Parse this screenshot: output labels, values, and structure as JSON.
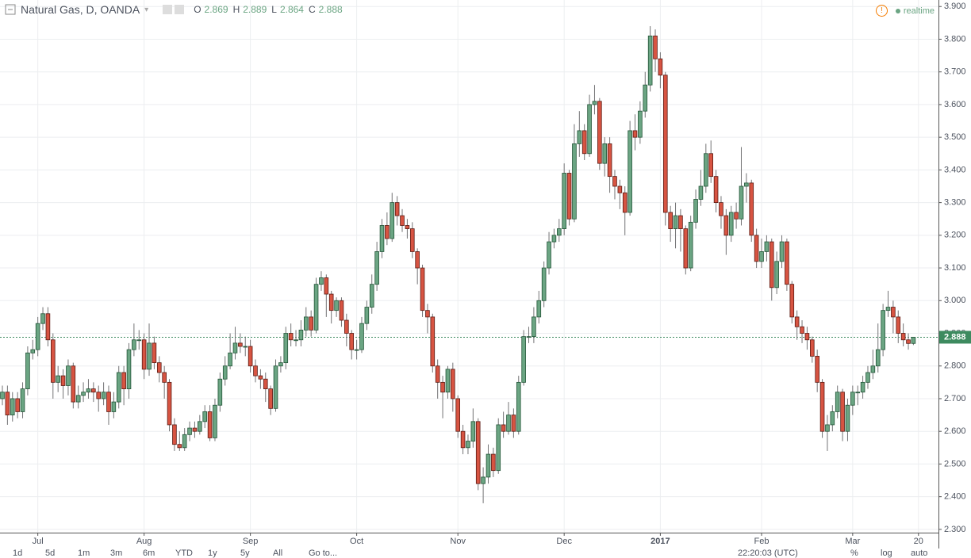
{
  "chart_data": {
    "type": "candlestick",
    "title": "Natural Gas, D, OANDA",
    "ohlc_labels": [
      "O",
      "H",
      "L",
      "C"
    ],
    "status": "realtime",
    "open": [
      2.7,
      2.72,
      2.65,
      2.7,
      2.66,
      2.73,
      2.84,
      2.85,
      2.93,
      2.96,
      2.88,
      2.75,
      2.77,
      2.74,
      2.8,
      2.69,
      2.71,
      2.72,
      2.73,
      2.72,
      2.7,
      2.72,
      2.66,
      2.69,
      2.78,
      2.73,
      2.85,
      2.88,
      2.88,
      2.79,
      2.87,
      2.81,
      2.78,
      2.75,
      2.62,
      2.56,
      2.55,
      2.59,
      2.61,
      2.6,
      2.63,
      2.66,
      2.58,
      2.68,
      2.76,
      2.8,
      2.84,
      2.87,
      2.86,
      2.86,
      2.8,
      2.77,
      2.76,
      2.73,
      2.67,
      2.8,
      2.81,
      2.9,
      2.88,
      2.88,
      2.91,
      2.95,
      2.91,
      3.05,
      3.07,
      3.02,
      2.97,
      3.0,
      2.94,
      2.9,
      2.85,
      2.85,
      2.93,
      2.98,
      3.05,
      3.15,
      3.23,
      3.19,
      3.3,
      3.26,
      3.23,
      3.22,
      3.15,
      3.1,
      2.97,
      2.95,
      2.8,
      2.75,
      2.72,
      2.79,
      2.7,
      2.6,
      2.55,
      2.57,
      2.63,
      2.44,
      2.46,
      2.53,
      2.48,
      2.62,
      2.6,
      2.65,
      2.6,
      2.75,
      2.89,
      2.89,
      2.95,
      3.0,
      3.1,
      3.18,
      3.2,
      3.22,
      3.39,
      3.25,
      3.48,
      3.52,
      3.45,
      3.6,
      3.61,
      3.42,
      3.48,
      3.38,
      3.35,
      3.33,
      3.27,
      3.52,
      3.5,
      3.58,
      3.66,
      3.81,
      3.74,
      3.69,
      3.27,
      3.22,
      3.26,
      3.22,
      3.1,
      3.24,
      3.31,
      3.35,
      3.45,
      3.38,
      3.3,
      3.26,
      3.2,
      3.27,
      3.25,
      3.35,
      3.36,
      3.2,
      3.12,
      3.15,
      3.18,
      3.04,
      3.12,
      3.18,
      3.05,
      2.95,
      2.92,
      2.9,
      2.88,
      2.83,
      2.75,
      2.6,
      2.62,
      2.66,
      2.72,
      2.6,
      2.68,
      2.72,
      2.72,
      2.75,
      2.78,
      2.8,
      2.85,
      2.97,
      2.98,
      2.95,
      2.9,
      2.88,
      2.869
    ],
    "high": [
      2.74,
      2.74,
      2.72,
      2.72,
      2.75,
      2.86,
      2.88,
      2.95,
      2.98,
      2.98,
      2.9,
      2.8,
      2.79,
      2.82,
      2.81,
      2.74,
      2.75,
      2.76,
      2.75,
      2.74,
      2.75,
      2.74,
      2.72,
      2.8,
      2.8,
      2.87,
      2.93,
      2.91,
      2.9,
      2.93,
      2.89,
      2.83,
      2.8,
      2.76,
      2.64,
      2.6,
      2.61,
      2.63,
      2.63,
      2.65,
      2.68,
      2.68,
      2.7,
      2.78,
      2.83,
      2.9,
      2.92,
      2.9,
      2.89,
      2.88,
      2.82,
      2.79,
      2.78,
      2.74,
      2.82,
      2.83,
      2.92,
      2.93,
      2.91,
      2.94,
      2.98,
      2.97,
      3.07,
      3.09,
      3.08,
      3.03,
      3.01,
      3.01,
      2.96,
      2.91,
      2.88,
      2.95,
      3.0,
      3.08,
      3.18,
      3.25,
      3.27,
      3.33,
      3.32,
      3.28,
      3.25,
      3.24,
      3.16,
      3.11,
      2.99,
      2.96,
      2.82,
      2.77,
      2.8,
      2.81,
      2.71,
      2.62,
      2.59,
      2.67,
      2.64,
      2.49,
      2.56,
      2.55,
      2.64,
      2.66,
      2.69,
      2.67,
      2.77,
      2.91,
      2.92,
      2.98,
      3.03,
      3.12,
      3.21,
      3.22,
      3.25,
      3.42,
      3.4,
      3.54,
      3.58,
      3.54,
      3.63,
      3.66,
      3.62,
      3.5,
      3.5,
      3.4,
      3.37,
      3.35,
      3.55,
      3.57,
      3.61,
      3.7,
      3.84,
      3.83,
      3.76,
      3.7,
      3.29,
      3.3,
      3.28,
      3.23,
      3.26,
      3.34,
      3.4,
      3.48,
      3.49,
      3.4,
      3.32,
      3.28,
      3.29,
      3.3,
      3.47,
      3.39,
      3.37,
      3.22,
      3.19,
      3.2,
      3.19,
      3.15,
      3.2,
      3.19,
      3.06,
      2.97,
      2.94,
      2.92,
      2.89,
      2.85,
      2.76,
      2.65,
      2.68,
      2.74,
      2.73,
      2.7,
      2.74,
      2.74,
      2.77,
      2.8,
      2.85,
      2.93,
      2.99,
      3.03,
      3.0,
      2.97,
      2.93,
      2.9,
      2.889
    ],
    "low": [
      2.68,
      2.62,
      2.63,
      2.64,
      2.64,
      2.71,
      2.82,
      2.83,
      2.91,
      2.86,
      2.7,
      2.72,
      2.7,
      2.71,
      2.67,
      2.67,
      2.69,
      2.7,
      2.69,
      2.66,
      2.68,
      2.62,
      2.64,
      2.67,
      2.68,
      2.7,
      2.83,
      2.85,
      2.76,
      2.77,
      2.79,
      2.75,
      2.7,
      2.6,
      2.54,
      2.54,
      2.54,
      2.57,
      2.58,
      2.59,
      2.61,
      2.57,
      2.57,
      2.66,
      2.74,
      2.79,
      2.82,
      2.84,
      2.83,
      2.78,
      2.75,
      2.73,
      2.69,
      2.65,
      2.66,
      2.78,
      2.79,
      2.86,
      2.86,
      2.86,
      2.89,
      2.89,
      2.9,
      3.03,
      2.95,
      2.93,
      2.95,
      2.92,
      2.86,
      2.82,
      2.82,
      2.84,
      2.91,
      2.96,
      3.03,
      3.13,
      3.17,
      3.18,
      3.23,
      3.21,
      3.19,
      3.13,
      3.05,
      2.95,
      2.9,
      2.78,
      2.7,
      2.64,
      2.7,
      2.66,
      2.58,
      2.53,
      2.53,
      2.55,
      2.42,
      2.38,
      2.44,
      2.46,
      2.47,
      2.58,
      2.59,
      2.58,
      2.59,
      2.74,
      2.87,
      2.87,
      2.93,
      2.98,
      3.08,
      3.16,
      3.18,
      3.2,
      3.23,
      3.24,
      3.44,
      3.43,
      3.44,
      3.57,
      3.4,
      3.38,
      3.33,
      3.31,
      3.28,
      3.2,
      3.26,
      3.46,
      3.48,
      3.56,
      3.64,
      3.7,
      3.65,
      3.23,
      3.18,
      3.16,
      3.15,
      3.08,
      3.09,
      3.22,
      3.29,
      3.33,
      3.36,
      3.27,
      3.22,
      3.14,
      3.18,
      3.22,
      3.23,
      3.3,
      3.18,
      3.1,
      3.1,
      3.12,
      3.0,
      3.02,
      3.1,
      3.03,
      2.93,
      2.88,
      2.87,
      2.85,
      2.81,
      2.72,
      2.58,
      2.54,
      2.6,
      2.64,
      2.57,
      2.57,
      2.65,
      2.68,
      2.7,
      2.73,
      2.76,
      2.78,
      2.83,
      2.95,
      2.9,
      2.87,
      2.86,
      2.85,
      2.864
    ],
    "close": [
      2.72,
      2.65,
      2.7,
      2.66,
      2.73,
      2.84,
      2.85,
      2.93,
      2.96,
      2.88,
      2.75,
      2.77,
      2.74,
      2.8,
      2.69,
      2.71,
      2.72,
      2.73,
      2.72,
      2.7,
      2.72,
      2.66,
      2.69,
      2.78,
      2.73,
      2.85,
      2.88,
      2.88,
      2.79,
      2.87,
      2.81,
      2.78,
      2.75,
      2.62,
      2.56,
      2.55,
      2.59,
      2.61,
      2.6,
      2.63,
      2.66,
      2.58,
      2.68,
      2.76,
      2.8,
      2.84,
      2.87,
      2.86,
      2.86,
      2.8,
      2.77,
      2.76,
      2.73,
      2.67,
      2.8,
      2.81,
      2.9,
      2.88,
      2.88,
      2.91,
      2.95,
      2.91,
      3.05,
      3.07,
      3.02,
      2.97,
      3.0,
      2.94,
      2.9,
      2.85,
      2.85,
      2.93,
      2.98,
      3.05,
      3.15,
      3.23,
      3.19,
      3.3,
      3.26,
      3.23,
      3.22,
      3.15,
      3.1,
      2.97,
      2.95,
      2.8,
      2.75,
      2.72,
      2.79,
      2.7,
      2.6,
      2.55,
      2.57,
      2.63,
      2.44,
      2.46,
      2.53,
      2.48,
      2.62,
      2.6,
      2.65,
      2.6,
      2.75,
      2.89,
      2.89,
      2.95,
      3.0,
      3.1,
      3.18,
      3.2,
      3.22,
      3.39,
      3.25,
      3.48,
      3.52,
      3.45,
      3.6,
      3.61,
      3.42,
      3.48,
      3.38,
      3.35,
      3.33,
      3.27,
      3.52,
      3.5,
      3.58,
      3.66,
      3.81,
      3.74,
      3.69,
      3.27,
      3.22,
      3.26,
      3.22,
      3.1,
      3.24,
      3.31,
      3.35,
      3.45,
      3.38,
      3.3,
      3.26,
      3.2,
      3.27,
      3.25,
      3.35,
      3.36,
      3.2,
      3.12,
      3.15,
      3.18,
      3.04,
      3.12,
      3.18,
      3.05,
      2.95,
      2.92,
      2.9,
      2.88,
      2.83,
      2.75,
      2.6,
      2.62,
      2.66,
      2.72,
      2.6,
      2.68,
      2.72,
      2.72,
      2.75,
      2.78,
      2.8,
      2.85,
      2.97,
      2.98,
      2.95,
      2.9,
      2.88,
      2.869,
      2.888
    ],
    "up_color": "#6ba583",
    "down_color": "#d75442",
    "ylim": [
      2.29,
      3.92
    ],
    "yticks": [
      {
        "value": 2.3,
        "label": "2.300"
      },
      {
        "value": 2.4,
        "label": "2.400"
      },
      {
        "value": 2.5,
        "label": "2.500"
      },
      {
        "value": 2.6,
        "label": "2.600"
      },
      {
        "value": 2.7,
        "label": "2.700"
      },
      {
        "value": 2.8,
        "label": "2.800"
      },
      {
        "value": 2.9,
        "label": "2.900"
      },
      {
        "value": 3.0,
        "label": "3.000"
      },
      {
        "value": 3.1,
        "label": "3.100"
      },
      {
        "value": 3.2,
        "label": "3.200"
      },
      {
        "value": 3.3,
        "label": "3.300"
      },
      {
        "value": 3.4,
        "label": "3.400"
      },
      {
        "value": 3.5,
        "label": "3.500"
      },
      {
        "value": 3.6,
        "label": "3.600"
      },
      {
        "value": 3.7,
        "label": "3.700"
      },
      {
        "value": 3.8,
        "label": "3.800"
      },
      {
        "value": 3.9,
        "label": "3.900"
      }
    ],
    "xticks": [
      {
        "value": 7,
        "label": "Jul"
      },
      {
        "value": 28,
        "label": "Aug"
      },
      {
        "value": 49,
        "label": "Sep"
      },
      {
        "value": 70,
        "label": "Oct"
      },
      {
        "value": 90,
        "label": "Nov"
      },
      {
        "value": 111,
        "label": "Dec"
      },
      {
        "value": 130,
        "label": "2017"
      },
      {
        "value": 150,
        "label": "Feb"
      },
      {
        "value": 168,
        "label": "Mar"
      },
      {
        "value": 181,
        "label": "20"
      }
    ],
    "grid": true,
    "toolbar": [
      "1d",
      "5d",
      "1m",
      "3m",
      "6m",
      "YTD",
      "1y",
      "5y",
      "All",
      "Go to..."
    ],
    "clock": "22:20:03 (UTC)",
    "scale_options": [
      "%",
      "log",
      "auto"
    ]
  }
}
